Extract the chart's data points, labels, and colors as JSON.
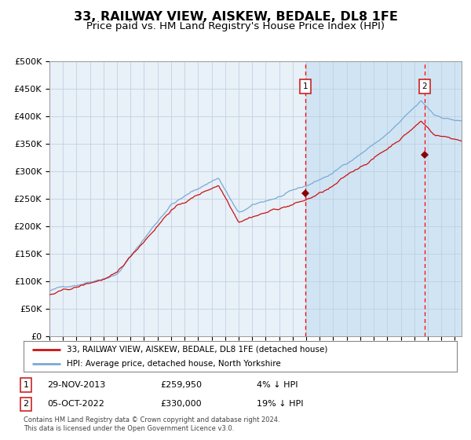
{
  "title": "33, RAILWAY VIEW, AISKEW, BEDALE, DL8 1FE",
  "subtitle": "Price paid vs. HM Land Registry's House Price Index (HPI)",
  "title_fontsize": 11.5,
  "subtitle_fontsize": 9.5,
  "y_min": 0,
  "y_max": 500000,
  "y_ticks": [
    0,
    50000,
    100000,
    150000,
    200000,
    250000,
    300000,
    350000,
    400000,
    450000,
    500000
  ],
  "y_tick_labels": [
    "£0",
    "£50K",
    "£100K",
    "£150K",
    "£200K",
    "£250K",
    "£300K",
    "£350K",
    "£400K",
    "£450K",
    "£500K"
  ],
  "hpi_color": "#7aaad4",
  "price_color": "#cc1111",
  "background_color_left": "#e8f0f8",
  "background_color_right": "#d0e4f4",
  "grid_color": "#bbccdd",
  "sale1_date_year": 2013.92,
  "sale1_price": 259950,
  "sale2_date_year": 2022.77,
  "sale2_price": 330000,
  "legend_label_price": "33, RAILWAY VIEW, AISKEW, BEDALE, DL8 1FE (detached house)",
  "legend_label_hpi": "HPI: Average price, detached house, North Yorkshire",
  "table_row1_num": "1",
  "table_row1_date": "29-NOV-2013",
  "table_row1_price": "£259,950",
  "table_row1_hpi": "4% ↓ HPI",
  "table_row2_num": "2",
  "table_row2_date": "05-OCT-2022",
  "table_row2_price": "£330,000",
  "table_row2_hpi": "19% ↓ HPI",
  "footer_line1": "Contains HM Land Registry data © Crown copyright and database right 2024.",
  "footer_line2": "This data is licensed under the Open Government Licence v3.0."
}
